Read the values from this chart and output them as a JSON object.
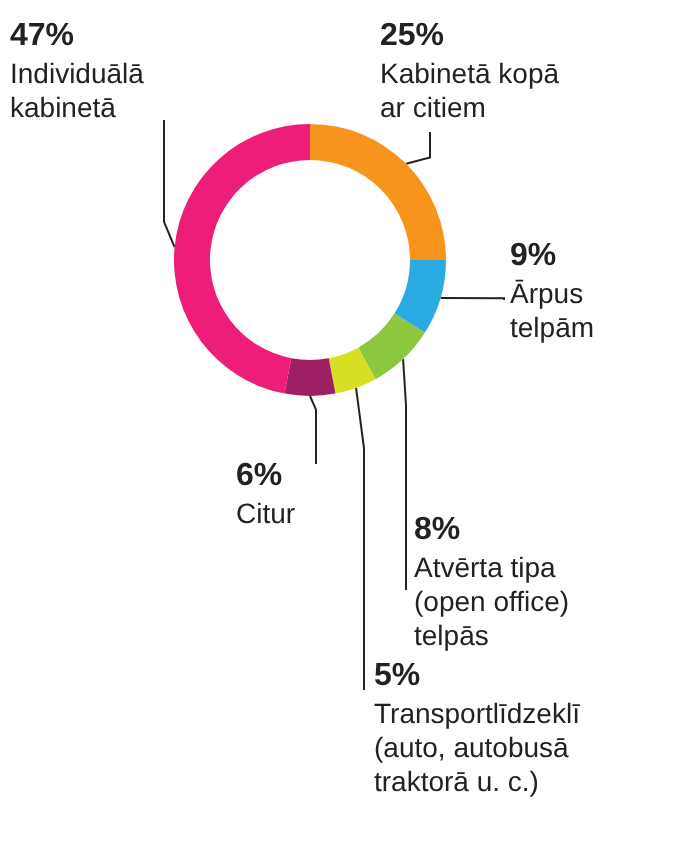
{
  "chart_data": {
    "type": "donut",
    "categories": [
      "Kabinetā kopā ar citiem",
      "Ārpus telpām",
      "Atvērta tipa (open office) telpās",
      "Transportlīdzeklī (auto, autobusā traktorā u. c.)",
      "Citur",
      "Individuālā kabinetā"
    ],
    "values": [
      25,
      9,
      8,
      5,
      6,
      47
    ],
    "colors": [
      "#f7941d",
      "#29abe2",
      "#8dc63f",
      "#d7df23",
      "#9e1f63",
      "#ec1e79"
    ],
    "value_labels": [
      "25%",
      "9%",
      "8%",
      "5%",
      "6%",
      "47%"
    ]
  }
}
